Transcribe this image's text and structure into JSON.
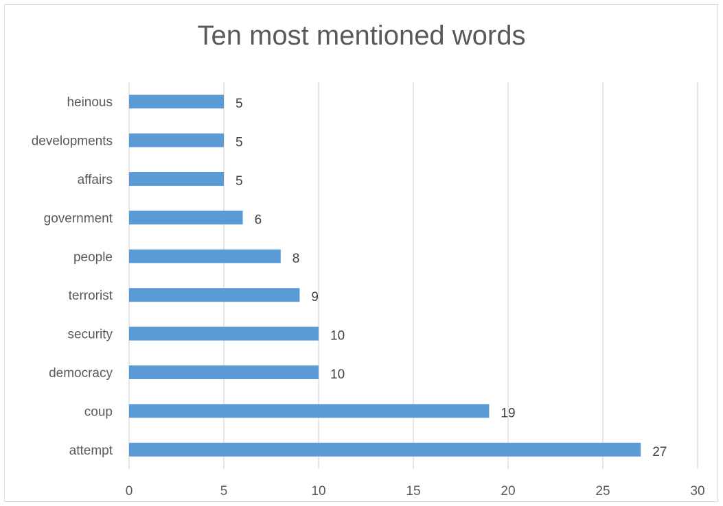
{
  "chart_data": {
    "type": "bar",
    "orientation": "horizontal",
    "title": "Ten most mentioned words",
    "xlabel": "",
    "ylabel": "",
    "categories": [
      "attempt",
      "coup",
      "democracy",
      "security",
      "terrorist",
      "people",
      "government",
      "affairs",
      "developments",
      "heinous"
    ],
    "values": [
      27,
      19,
      10,
      10,
      9,
      8,
      6,
      5,
      5,
      5
    ],
    "xlim": [
      0,
      30
    ],
    "x_ticks": [
      "0",
      "5",
      "10",
      "15",
      "20",
      "25",
      "30"
    ],
    "grid": "vertical",
    "data_labels": true,
    "legend": "none",
    "bar_color": "#5b9bd5"
  }
}
